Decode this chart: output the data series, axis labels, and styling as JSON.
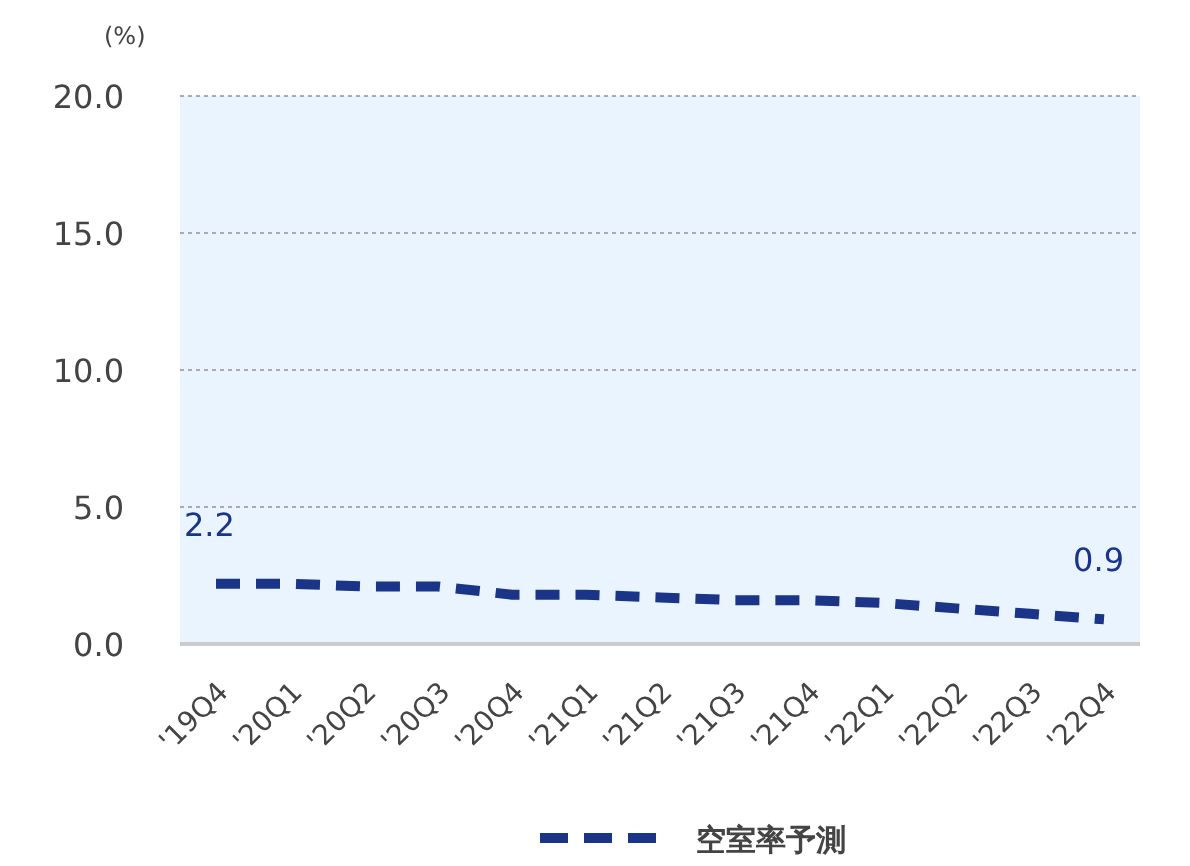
{
  "chart_data": {
    "type": "line",
    "ylabel": "(%)",
    "categories": [
      "'19Q4",
      "'20Q1",
      "'20Q2",
      "'20Q3",
      "'20Q4",
      "'21Q1",
      "'21Q2",
      "'21Q3",
      "'21Q4",
      "'22Q1",
      "'22Q2",
      "'22Q3",
      "'22Q4"
    ],
    "series": [
      {
        "name": "空室率予測",
        "color": "#1a3488",
        "values": [
          2.2,
          2.2,
          2.1,
          2.1,
          1.8,
          1.8,
          1.7,
          1.6,
          1.6,
          1.5,
          1.3,
          1.1,
          0.9
        ],
        "value_labels": [
          "2.2",
          null,
          null,
          null,
          null,
          null,
          null,
          null,
          null,
          null,
          null,
          null,
          "0.9"
        ]
      }
    ],
    "ylim": [
      0,
      20
    ],
    "yticks": [
      {
        "value": 0,
        "label": "0.0"
      },
      {
        "value": 5,
        "label": "5.0"
      },
      {
        "value": 10,
        "label": "10.0"
      },
      {
        "value": 15,
        "label": "15.0"
      },
      {
        "value": 20,
        "label": "20.0"
      }
    ],
    "grid": "y",
    "legend": "bottom",
    "line_style": "dashed",
    "marker": "none"
  }
}
